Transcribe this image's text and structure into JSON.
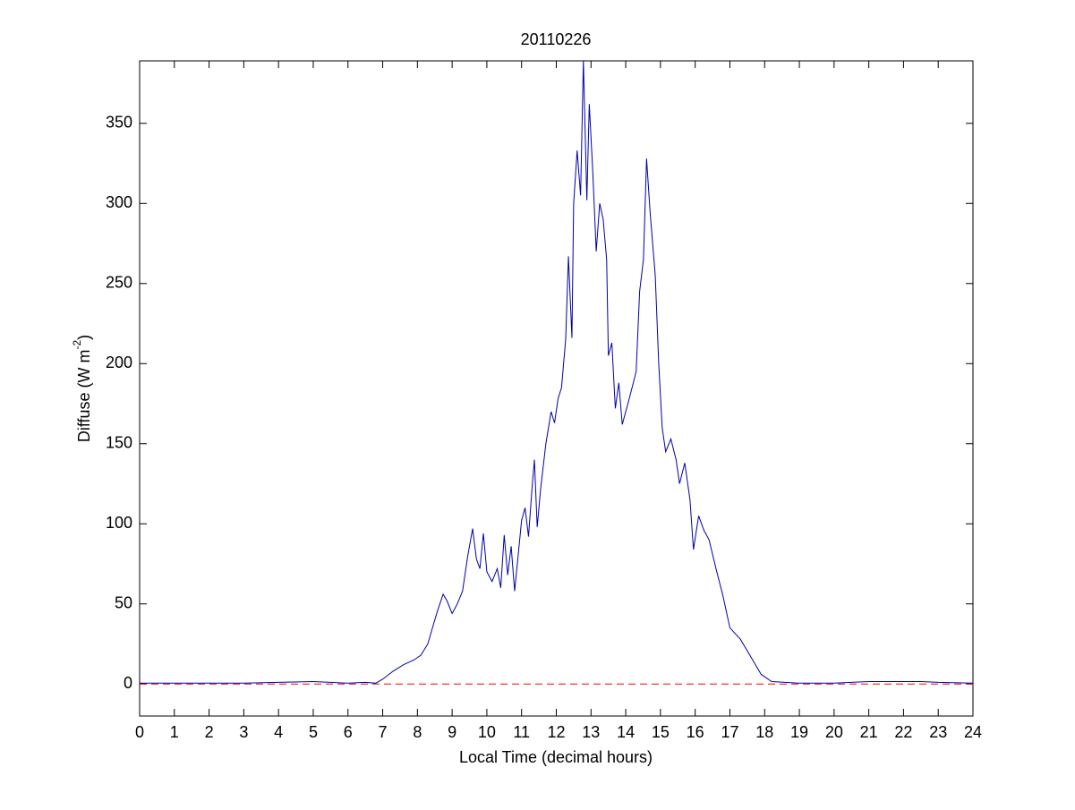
{
  "chart_data": {
    "type": "line",
    "title": "20110226",
    "xlabel": "Local Time (decimal hours)",
    "ylabel_parts": [
      "Diffuse (W m",
      "-2",
      ")"
    ],
    "xlim": [
      0,
      24
    ],
    "ylim": [
      -20,
      389
    ],
    "xticks": [
      0,
      1,
      2,
      3,
      4,
      5,
      6,
      7,
      8,
      9,
      10,
      11,
      12,
      13,
      14,
      15,
      16,
      17,
      18,
      19,
      20,
      21,
      22,
      23,
      24
    ],
    "yticks": [
      0,
      50,
      100,
      150,
      200,
      250,
      300,
      350
    ],
    "reference_line": {
      "value": 0,
      "color": "#ff0000",
      "style": "dashed"
    },
    "series": [
      {
        "color": "#0000aa",
        "x": [
          0,
          1,
          2,
          3,
          4,
          5,
          5.5,
          6,
          6.5,
          6.8,
          7.0,
          7.3,
          7.6,
          7.9,
          8.1,
          8.3,
          8.5,
          8.6,
          8.74,
          8.85,
          9.0,
          9.15,
          9.3,
          9.45,
          9.59,
          9.7,
          9.8,
          9.9,
          10.0,
          10.15,
          10.3,
          10.4,
          10.5,
          10.6,
          10.7,
          10.8,
          10.9,
          11.0,
          11.1,
          11.2,
          11.3,
          11.37,
          11.45,
          11.55,
          11.7,
          11.85,
          11.95,
          12.05,
          12.15,
          12.27,
          12.35,
          12.45,
          12.5,
          12.6,
          12.7,
          12.78,
          12.88,
          12.95,
          13.05,
          13.15,
          13.25,
          13.35,
          13.45,
          13.5,
          13.6,
          13.7,
          13.8,
          13.9,
          14.1,
          14.3,
          14.4,
          14.51,
          14.6,
          14.7,
          14.85,
          14.95,
          15.05,
          15.15,
          15.3,
          15.45,
          15.55,
          15.7,
          15.85,
          15.95,
          16.1,
          16.25,
          16.4,
          16.6,
          16.8,
          17.0,
          17.3,
          17.6,
          17.9,
          18.2,
          19,
          20,
          20.5,
          21,
          22,
          22.5,
          23,
          24
        ],
        "values": [
          0.5,
          0.5,
          0.5,
          0.5,
          1,
          1.5,
          1,
          0.5,
          1,
          0.5,
          3,
          8,
          12,
          15,
          18,
          25,
          40,
          47,
          56,
          52,
          44,
          50,
          58,
          80,
          97,
          78,
          72,
          94,
          70,
          64,
          72,
          60,
          93,
          68,
          86,
          58,
          80,
          102,
          110,
          92,
          122,
          140,
          98,
          122,
          150,
          170,
          163,
          178,
          185,
          215,
          267,
          216,
          300,
          333,
          305,
          389,
          302,
          362,
          320,
          270,
          300,
          290,
          265,
          205,
          213,
          172,
          188,
          162,
          178,
          195,
          245,
          265,
          328,
          295,
          255,
          200,
          160,
          145,
          153,
          140,
          125,
          138,
          115,
          84,
          105,
          96,
          90,
          72,
          55,
          35,
          28,
          17,
          6,
          1.5,
          0.5,
          0.5,
          1,
          1.5,
          1.5,
          1.5,
          1,
          0.5
        ]
      }
    ]
  }
}
